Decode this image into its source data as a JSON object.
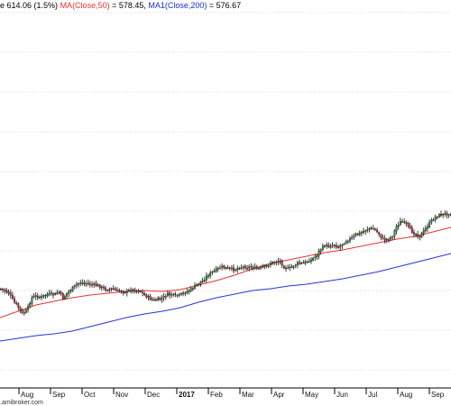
{
  "header": {
    "price_text": "e 614.06 (1.5%)",
    "ma50_label": "MA(Close,50)",
    "ma50_value": " = 578.45, ",
    "ma200_label": "MA1(Close,200)",
    "ma200_value": " = 576.67"
  },
  "credit": ".amibroker.com",
  "colors": {
    "candle_up": "#2e8b2e",
    "candle_down": "#c8252a",
    "wick": "#111111",
    "ma50": "#e8332f",
    "ma200": "#2a32d8",
    "grid": "#d8d8d8",
    "axis": "#000000"
  },
  "chart_data": {
    "type": "line",
    "x_labels": [
      "Aug",
      "Sep",
      "Oct",
      "Nov",
      "Dec",
      "2017",
      "Feb",
      "Mar",
      "Apr",
      "May",
      "Jun",
      "Jul",
      "Aug",
      "Sep"
    ],
    "x_label_bold": [
      false,
      false,
      false,
      false,
      false,
      true,
      false,
      false,
      false,
      false,
      false,
      false,
      false,
      false
    ],
    "gridlines_y": [
      14,
      58,
      102,
      146,
      190,
      234,
      278,
      322,
      366,
      410
    ],
    "series": [
      {
        "name": "MA(Close,50)",
        "values_points": [
          [
            0,
            352
          ],
          [
            20,
            345
          ],
          [
            40,
            338
          ],
          [
            60,
            334
          ],
          [
            80,
            330
          ],
          [
            100,
            327
          ],
          [
            120,
            325
          ],
          [
            140,
            323
          ],
          [
            160,
            322
          ],
          [
            180,
            323
          ],
          [
            200,
            321
          ],
          [
            220,
            316
          ],
          [
            240,
            311
          ],
          [
            260,
            305
          ],
          [
            280,
            298
          ],
          [
            300,
            292
          ],
          [
            320,
            288
          ],
          [
            340,
            284
          ],
          [
            360,
            280
          ],
          [
            380,
            277
          ],
          [
            400,
            273
          ],
          [
            420,
            269
          ],
          [
            440,
            265
          ],
          [
            460,
            262
          ],
          [
            480,
            257
          ],
          [
            500,
            252
          ]
        ]
      },
      {
        "name": "MA1(Close,200)",
        "values_points": [
          [
            0,
            378
          ],
          [
            20,
            375
          ],
          [
            40,
            372
          ],
          [
            60,
            370
          ],
          [
            80,
            367
          ],
          [
            100,
            362
          ],
          [
            120,
            357
          ],
          [
            140,
            352
          ],
          [
            160,
            348
          ],
          [
            180,
            345
          ],
          [
            200,
            341
          ],
          [
            220,
            335
          ],
          [
            240,
            330
          ],
          [
            260,
            326
          ],
          [
            280,
            322
          ],
          [
            300,
            320
          ],
          [
            320,
            317
          ],
          [
            340,
            315
          ],
          [
            360,
            312
          ],
          [
            380,
            309
          ],
          [
            400,
            305
          ],
          [
            420,
            301
          ],
          [
            440,
            296
          ],
          [
            460,
            291
          ],
          [
            480,
            286
          ],
          [
            500,
            281
          ]
        ]
      },
      {
        "name": "price",
        "values_points": [
          [
            0,
            320
          ],
          [
            5,
            322
          ],
          [
            10,
            325
          ],
          [
            15,
            334
          ],
          [
            20,
            340
          ],
          [
            25,
            348
          ],
          [
            30,
            344
          ],
          [
            35,
            330
          ],
          [
            40,
            328
          ],
          [
            45,
            330
          ],
          [
            50,
            327
          ],
          [
            55,
            326
          ],
          [
            60,
            327
          ],
          [
            65,
            323
          ],
          [
            70,
            331
          ],
          [
            75,
            324
          ],
          [
            80,
            320
          ],
          [
            85,
            315
          ],
          [
            90,
            313
          ],
          [
            95,
            314
          ],
          [
            100,
            315
          ],
          [
            105,
            316
          ],
          [
            110,
            317
          ],
          [
            115,
            320
          ],
          [
            120,
            321
          ],
          [
            125,
            320
          ],
          [
            130,
            323
          ],
          [
            135,
            322
          ],
          [
            140,
            324
          ],
          [
            145,
            321
          ],
          [
            150,
            322
          ],
          [
            155,
            322
          ],
          [
            160,
            327
          ],
          [
            165,
            330
          ],
          [
            170,
            333
          ],
          [
            175,
            332
          ],
          [
            180,
            331
          ],
          [
            185,
            326
          ],
          [
            190,
            327
          ],
          [
            195,
            328
          ],
          [
            200,
            327
          ],
          [
            205,
            324
          ],
          [
            210,
            322
          ],
          [
            215,
            318
          ],
          [
            220,
            314
          ],
          [
            225,
            311
          ],
          [
            230,
            305
          ],
          [
            235,
            302
          ],
          [
            240,
            299
          ],
          [
            245,
            296
          ],
          [
            250,
            297
          ],
          [
            255,
            298
          ],
          [
            260,
            299
          ],
          [
            265,
            296
          ],
          [
            270,
            296
          ],
          [
            275,
            296
          ],
          [
            280,
            296
          ],
          [
            285,
            298
          ],
          [
            290,
            297
          ],
          [
            295,
            295
          ],
          [
            300,
            292
          ],
          [
            305,
            290
          ],
          [
            310,
            289
          ],
          [
            315,
            296
          ],
          [
            320,
            298
          ],
          [
            325,
            295
          ],
          [
            330,
            292
          ],
          [
            335,
            292
          ],
          [
            340,
            290
          ],
          [
            345,
            288
          ],
          [
            350,
            284
          ],
          [
            355,
            277
          ],
          [
            360,
            272
          ],
          [
            365,
            273
          ],
          [
            370,
            271
          ],
          [
            375,
            274
          ],
          [
            380,
            270
          ],
          [
            385,
            266
          ],
          [
            390,
            264
          ],
          [
            395,
            260
          ],
          [
            400,
            258
          ],
          [
            405,
            255
          ],
          [
            410,
            253
          ],
          [
            415,
            254
          ],
          [
            420,
            259
          ],
          [
            425,
            266
          ],
          [
            430,
            265
          ],
          [
            435,
            262
          ],
          [
            440,
            250
          ],
          [
            445,
            245
          ],
          [
            450,
            248
          ],
          [
            455,
            255
          ],
          [
            460,
            259
          ],
          [
            465,
            262
          ],
          [
            470,
            256
          ],
          [
            475,
            249
          ],
          [
            480,
            243
          ],
          [
            485,
            239
          ],
          [
            490,
            238
          ],
          [
            495,
            237
          ],
          [
            500,
            236
          ]
        ]
      }
    ]
  }
}
